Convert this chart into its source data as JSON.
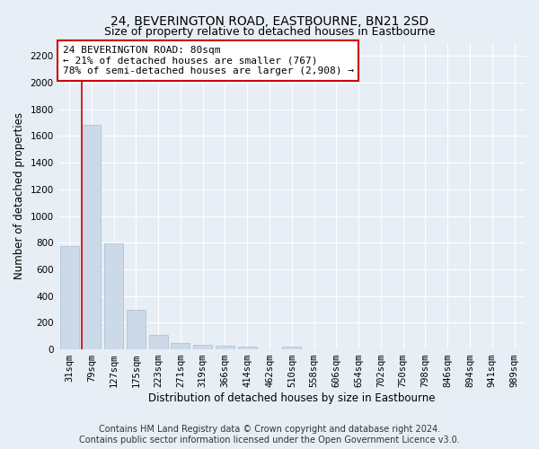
{
  "title": "24, BEVERINGTON ROAD, EASTBOURNE, BN21 2SD",
  "subtitle": "Size of property relative to detached houses in Eastbourne",
  "xlabel": "Distribution of detached houses by size in Eastbourne",
  "ylabel": "Number of detached properties",
  "footer_line1": "Contains HM Land Registry data © Crown copyright and database right 2024.",
  "footer_line2": "Contains public sector information licensed under the Open Government Licence v3.0.",
  "bar_labels": [
    "31sqm",
    "79sqm",
    "127sqm",
    "175sqm",
    "223sqm",
    "271sqm",
    "319sqm",
    "366sqm",
    "414sqm",
    "462sqm",
    "510sqm",
    "558sqm",
    "606sqm",
    "654sqm",
    "702sqm",
    "750sqm",
    "798sqm",
    "846sqm",
    "894sqm",
    "941sqm",
    "989sqm"
  ],
  "bar_values": [
    775,
    1685,
    795,
    300,
    110,
    45,
    32,
    25,
    22,
    0,
    20,
    0,
    0,
    0,
    0,
    0,
    0,
    0,
    0,
    0,
    0
  ],
  "bar_color": "#ccd9e8",
  "bar_edgecolor": "#a8bece",
  "annotation_text": "24 BEVERINGTON ROAD: 80sqm\n← 21% of detached houses are smaller (767)\n78% of semi-detached houses are larger (2,908) →",
  "annotation_box_facecolor": "#ffffff",
  "annotation_box_edgecolor": "#cc0000",
  "vline_color": "#cc0000",
  "vline_x_index": 0.575,
  "ylim": [
    0,
    2300
  ],
  "yticks": [
    0,
    200,
    400,
    600,
    800,
    1000,
    1200,
    1400,
    1600,
    1800,
    2000,
    2200
  ],
  "bg_color": "#e8eef5",
  "axes_bg_color": "#e8eef5",
  "grid_color": "#ffffff",
  "title_fontsize": 10,
  "subtitle_fontsize": 9,
  "xlabel_fontsize": 8.5,
  "ylabel_fontsize": 8.5,
  "tick_fontsize": 7.5,
  "annotation_fontsize": 8,
  "footer_fontsize": 7
}
